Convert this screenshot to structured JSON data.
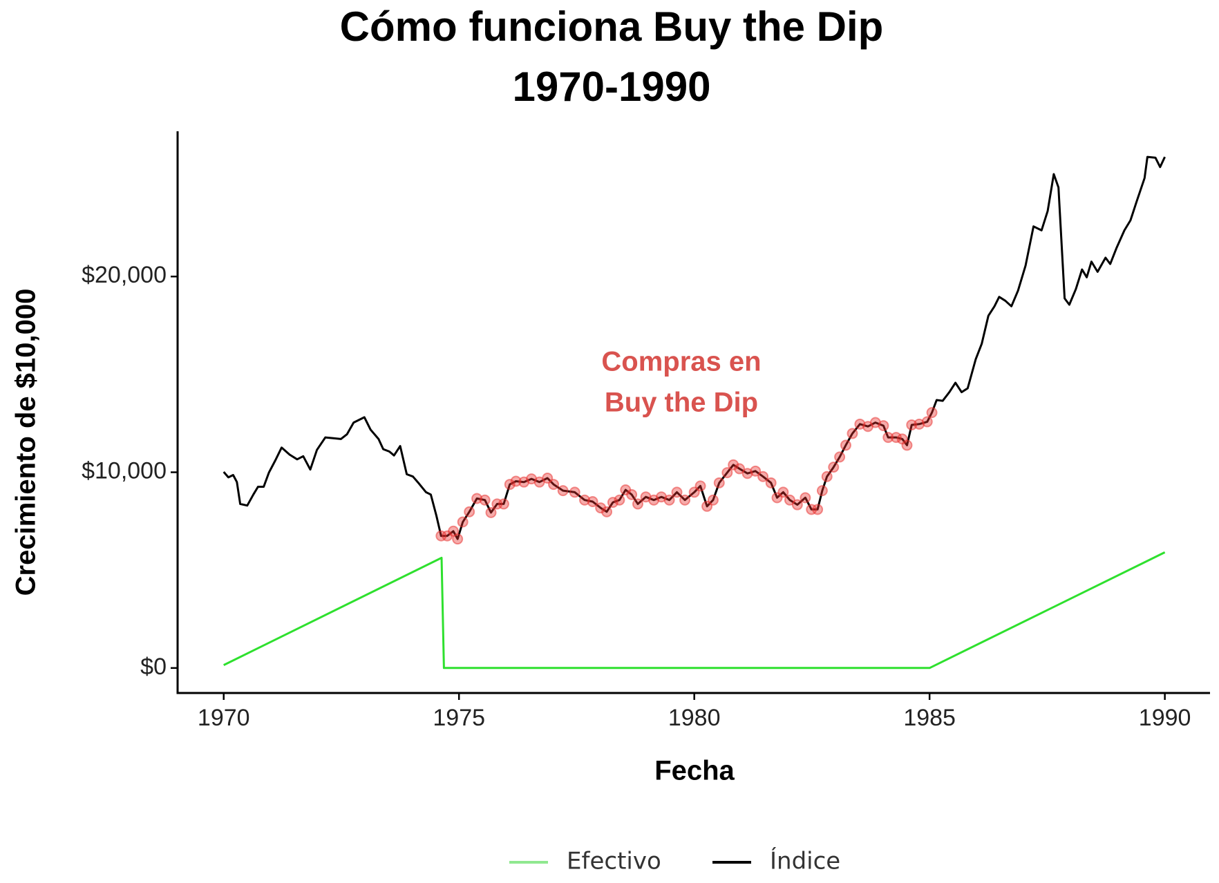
{
  "chart_data": {
    "type": "line",
    "title": "Cómo funciona Buy the Dip",
    "subtitle": "1970-1990",
    "x_label": "Fecha",
    "y_label": "Crecimiento de $10,000",
    "annotation": [
      "Compras en",
      "Buy the Dip"
    ],
    "annotation_color": "#d9534f",
    "xlim": [
      1969.02,
      1990.96
    ],
    "ylim": [
      -1277,
      27420
    ],
    "xticks": [
      1970,
      1975,
      1980,
      1985,
      1990
    ],
    "yticks": [
      {
        "value": 0,
        "label": "$0"
      },
      {
        "value": 10000,
        "label": "$10,000"
      },
      {
        "value": 20000,
        "label": "$20,000"
      }
    ],
    "grid": false,
    "legend": "bottom",
    "series": [
      {
        "name": "Efectivo",
        "color": "#2ee02e",
        "legend_color": "#90e890",
        "x": [
          1970.0,
          1974.63,
          1974.68,
          1985.0,
          1990.0
        ],
        "values": [
          150,
          5630,
          0,
          0,
          5910
        ]
      },
      {
        "name": "Índice",
        "color": "#000000",
        "x": [
          1970.0,
          1970.1,
          1970.2,
          1970.28,
          1970.35,
          1970.5,
          1970.63,
          1970.73,
          1970.85,
          1970.96,
          1971.1,
          1971.23,
          1971.4,
          1971.56,
          1971.69,
          1971.84,
          1971.98,
          1972.16,
          1972.33,
          1972.49,
          1972.62,
          1972.76,
          1972.99,
          1973.12,
          1973.29,
          1973.39,
          1973.52,
          1973.62,
          1973.75,
          1973.89,
          1974.02,
          1974.15,
          1974.3,
          1974.4,
          1974.52,
          1974.62,
          1974.75,
          1974.88,
          1974.97,
          1975.08,
          1975.22,
          1975.38,
          1975.55,
          1975.68,
          1975.81,
          1975.95,
          1976.08,
          1976.21,
          1976.38,
          1976.54,
          1976.71,
          1976.88,
          1977.01,
          1977.21,
          1977.46,
          1977.67,
          1977.84,
          1978.01,
          1978.14,
          1978.27,
          1978.41,
          1978.54,
          1978.67,
          1978.8,
          1978.97,
          1979.14,
          1979.3,
          1979.47,
          1979.63,
          1979.8,
          1980.0,
          1980.13,
          1980.27,
          1980.4,
          1980.53,
          1980.7,
          1980.83,
          1980.96,
          1981.13,
          1981.3,
          1981.46,
          1981.63,
          1981.76,
          1981.89,
          1982.03,
          1982.19,
          1982.36,
          1982.49,
          1982.62,
          1982.72,
          1982.82,
          1982.96,
          1983.09,
          1983.22,
          1983.36,
          1983.52,
          1983.69,
          1983.85,
          1984.02,
          1984.12,
          1984.29,
          1984.42,
          1984.52,
          1984.62,
          1984.78,
          1984.95,
          1985.05,
          1985.15,
          1985.28,
          1985.42,
          1985.55,
          1985.68,
          1985.81,
          1985.98,
          1986.11,
          1986.25,
          1986.38,
          1986.48,
          1986.61,
          1986.74,
          1986.88,
          1987.04,
          1987.21,
          1987.38,
          1987.51,
          1987.64,
          1987.74,
          1987.87,
          1987.97,
          1988.11,
          1988.24,
          1988.34,
          1988.44,
          1988.57,
          1988.74,
          1988.84,
          1988.97,
          1989.14,
          1989.27,
          1989.4,
          1989.57,
          1989.63,
          1989.8,
          1989.9,
          1990.0
        ],
        "values": [
          10020,
          9740,
          9860,
          9500,
          8380,
          8300,
          8860,
          9260,
          9260,
          9980,
          10620,
          11260,
          10900,
          10660,
          10820,
          10140,
          11140,
          11780,
          11740,
          11700,
          11940,
          12540,
          12810,
          12180,
          11700,
          11180,
          11060,
          10860,
          11340,
          9900,
          9780,
          9420,
          8980,
          8860,
          7780,
          6750,
          6750,
          6990,
          6590,
          7460,
          7980,
          8660,
          8580,
          7940,
          8380,
          8380,
          9380,
          9540,
          9500,
          9660,
          9500,
          9700,
          9380,
          9060,
          8980,
          8580,
          8500,
          8180,
          7980,
          8460,
          8580,
          9100,
          8860,
          8380,
          8740,
          8580,
          8740,
          8580,
          8980,
          8580,
          8980,
          9300,
          8260,
          8580,
          9460,
          9980,
          10380,
          10180,
          9940,
          10060,
          9780,
          9460,
          8700,
          8980,
          8580,
          8340,
          8700,
          8100,
          8100,
          9060,
          9780,
          10260,
          10780,
          11380,
          11980,
          12460,
          12340,
          12540,
          12380,
          11780,
          11780,
          11700,
          11380,
          12420,
          12460,
          12580,
          13050,
          13690,
          13650,
          14090,
          14570,
          14090,
          14290,
          15770,
          16570,
          18000,
          18480,
          18960,
          18760,
          18480,
          19280,
          20560,
          22560,
          22360,
          23350,
          25230,
          24550,
          18880,
          18560,
          19360,
          20360,
          19960,
          20760,
          20240,
          20960,
          20640,
          21440,
          22360,
          22870,
          23830,
          25030,
          26110,
          26070,
          25590,
          26110
        ]
      }
    ],
    "buy_points": {
      "color": "#e8302e",
      "x": [
        1974.62,
        1974.75,
        1974.88,
        1974.97,
        1975.08,
        1975.22,
        1975.38,
        1975.55,
        1975.68,
        1975.81,
        1975.95,
        1976.08,
        1976.21,
        1976.38,
        1976.54,
        1976.71,
        1976.88,
        1977.01,
        1977.21,
        1977.46,
        1977.67,
        1977.84,
        1978.01,
        1978.14,
        1978.27,
        1978.41,
        1978.54,
        1978.67,
        1978.8,
        1978.97,
        1979.14,
        1979.3,
        1979.47,
        1979.63,
        1979.8,
        1980.0,
        1980.13,
        1980.27,
        1980.4,
        1980.53,
        1980.7,
        1980.83,
        1980.96,
        1981.13,
        1981.3,
        1981.46,
        1981.63,
        1981.76,
        1981.89,
        1982.03,
        1982.19,
        1982.36,
        1982.49,
        1982.62,
        1982.72,
        1982.82,
        1982.96,
        1983.09,
        1983.22,
        1983.36,
        1983.52,
        1983.69,
        1983.85,
        1984.02,
        1984.12,
        1984.29,
        1984.42,
        1984.52,
        1984.62,
        1984.78,
        1984.95,
        1985.05
      ],
      "values": [
        6750,
        6750,
        6990,
        6590,
        7460,
        7980,
        8660,
        8580,
        7940,
        8380,
        8380,
        9380,
        9540,
        9500,
        9660,
        9500,
        9700,
        9380,
        9060,
        8980,
        8580,
        8500,
        8180,
        7980,
        8460,
        8580,
        9100,
        8860,
        8380,
        8740,
        8580,
        8740,
        8580,
        8980,
        8580,
        8980,
        9300,
        8260,
        8580,
        9460,
        9980,
        10380,
        10180,
        9940,
        10060,
        9780,
        9460,
        8700,
        8980,
        8580,
        8340,
        8700,
        8100,
        8100,
        9060,
        9780,
        10260,
        10780,
        11380,
        11980,
        12460,
        12340,
        12540,
        12380,
        11780,
        11780,
        11700,
        11380,
        12420,
        12460,
        12580,
        13050
      ]
    }
  }
}
